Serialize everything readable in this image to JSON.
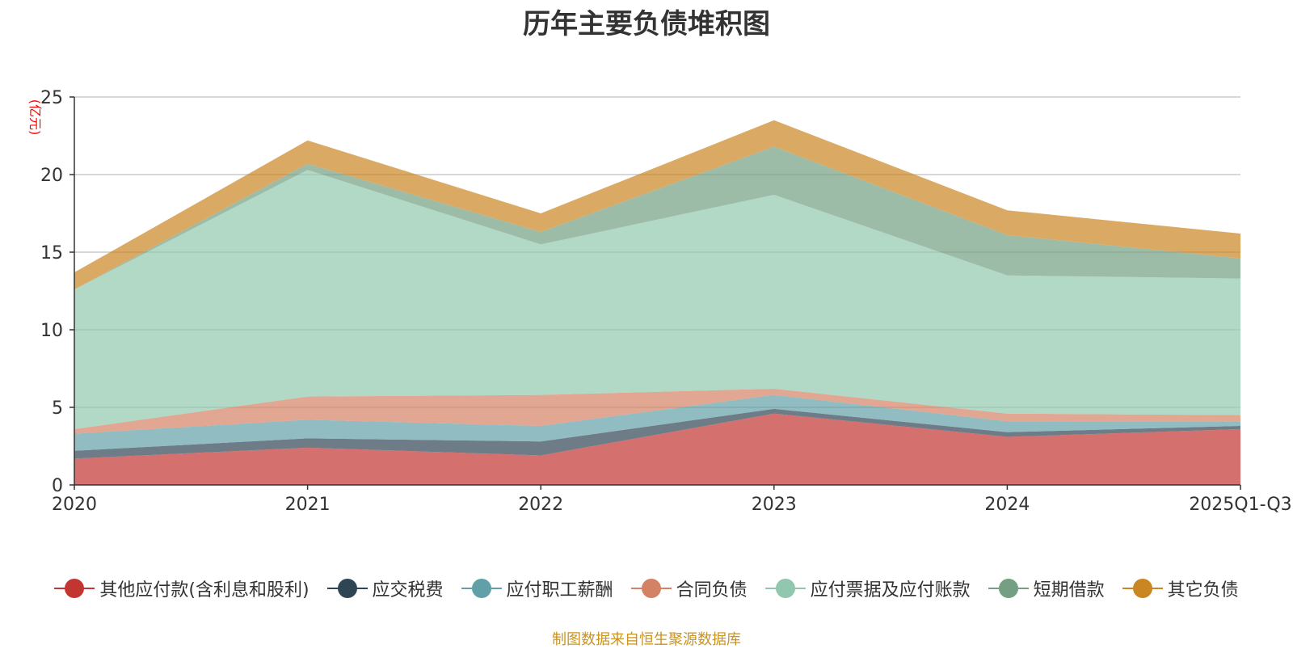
{
  "chart_data": {
    "type": "area",
    "stacked": true,
    "title": "历年主要负债堆积图",
    "ylabel": "(亿元)",
    "xlabel": "",
    "ylim": [
      0,
      25
    ],
    "yticks": [
      0,
      5,
      10,
      15,
      20,
      25
    ],
    "categories": [
      "2020",
      "2021",
      "2022",
      "2023",
      "2024",
      "2025Q1-Q3"
    ],
    "series": [
      {
        "name": "其他应付款(含利息和股利)",
        "color": "#c23531",
        "values": [
          1.7,
          2.4,
          1.9,
          4.6,
          3.1,
          3.6
        ]
      },
      {
        "name": "应交税费",
        "color": "#2f4554",
        "values": [
          0.5,
          0.6,
          0.9,
          0.3,
          0.3,
          0.2
        ]
      },
      {
        "name": "应付职工薪酬",
        "color": "#61a0a8",
        "values": [
          1.1,
          1.2,
          1.0,
          0.9,
          0.7,
          0.3
        ]
      },
      {
        "name": "合同负债",
        "color": "#d48265",
        "values": [
          0.3,
          1.5,
          2.0,
          0.4,
          0.5,
          0.4
        ]
      },
      {
        "name": "应付票据及应付账款",
        "color": "#91c7ae",
        "values": [
          9.0,
          14.6,
          9.7,
          12.5,
          8.9,
          8.8
        ]
      },
      {
        "name": "短期借款",
        "color": "#749f83",
        "values": [
          0.0,
          0.4,
          0.8,
          3.1,
          2.6,
          1.3
        ]
      },
      {
        "name": "其它负债",
        "color": "#ca8622",
        "values": [
          1.1,
          1.5,
          1.2,
          1.7,
          1.6,
          1.6
        ]
      }
    ],
    "grid": true,
    "legend_position": "bottom"
  },
  "source_note": "制图数据来自恒生聚源数据库"
}
